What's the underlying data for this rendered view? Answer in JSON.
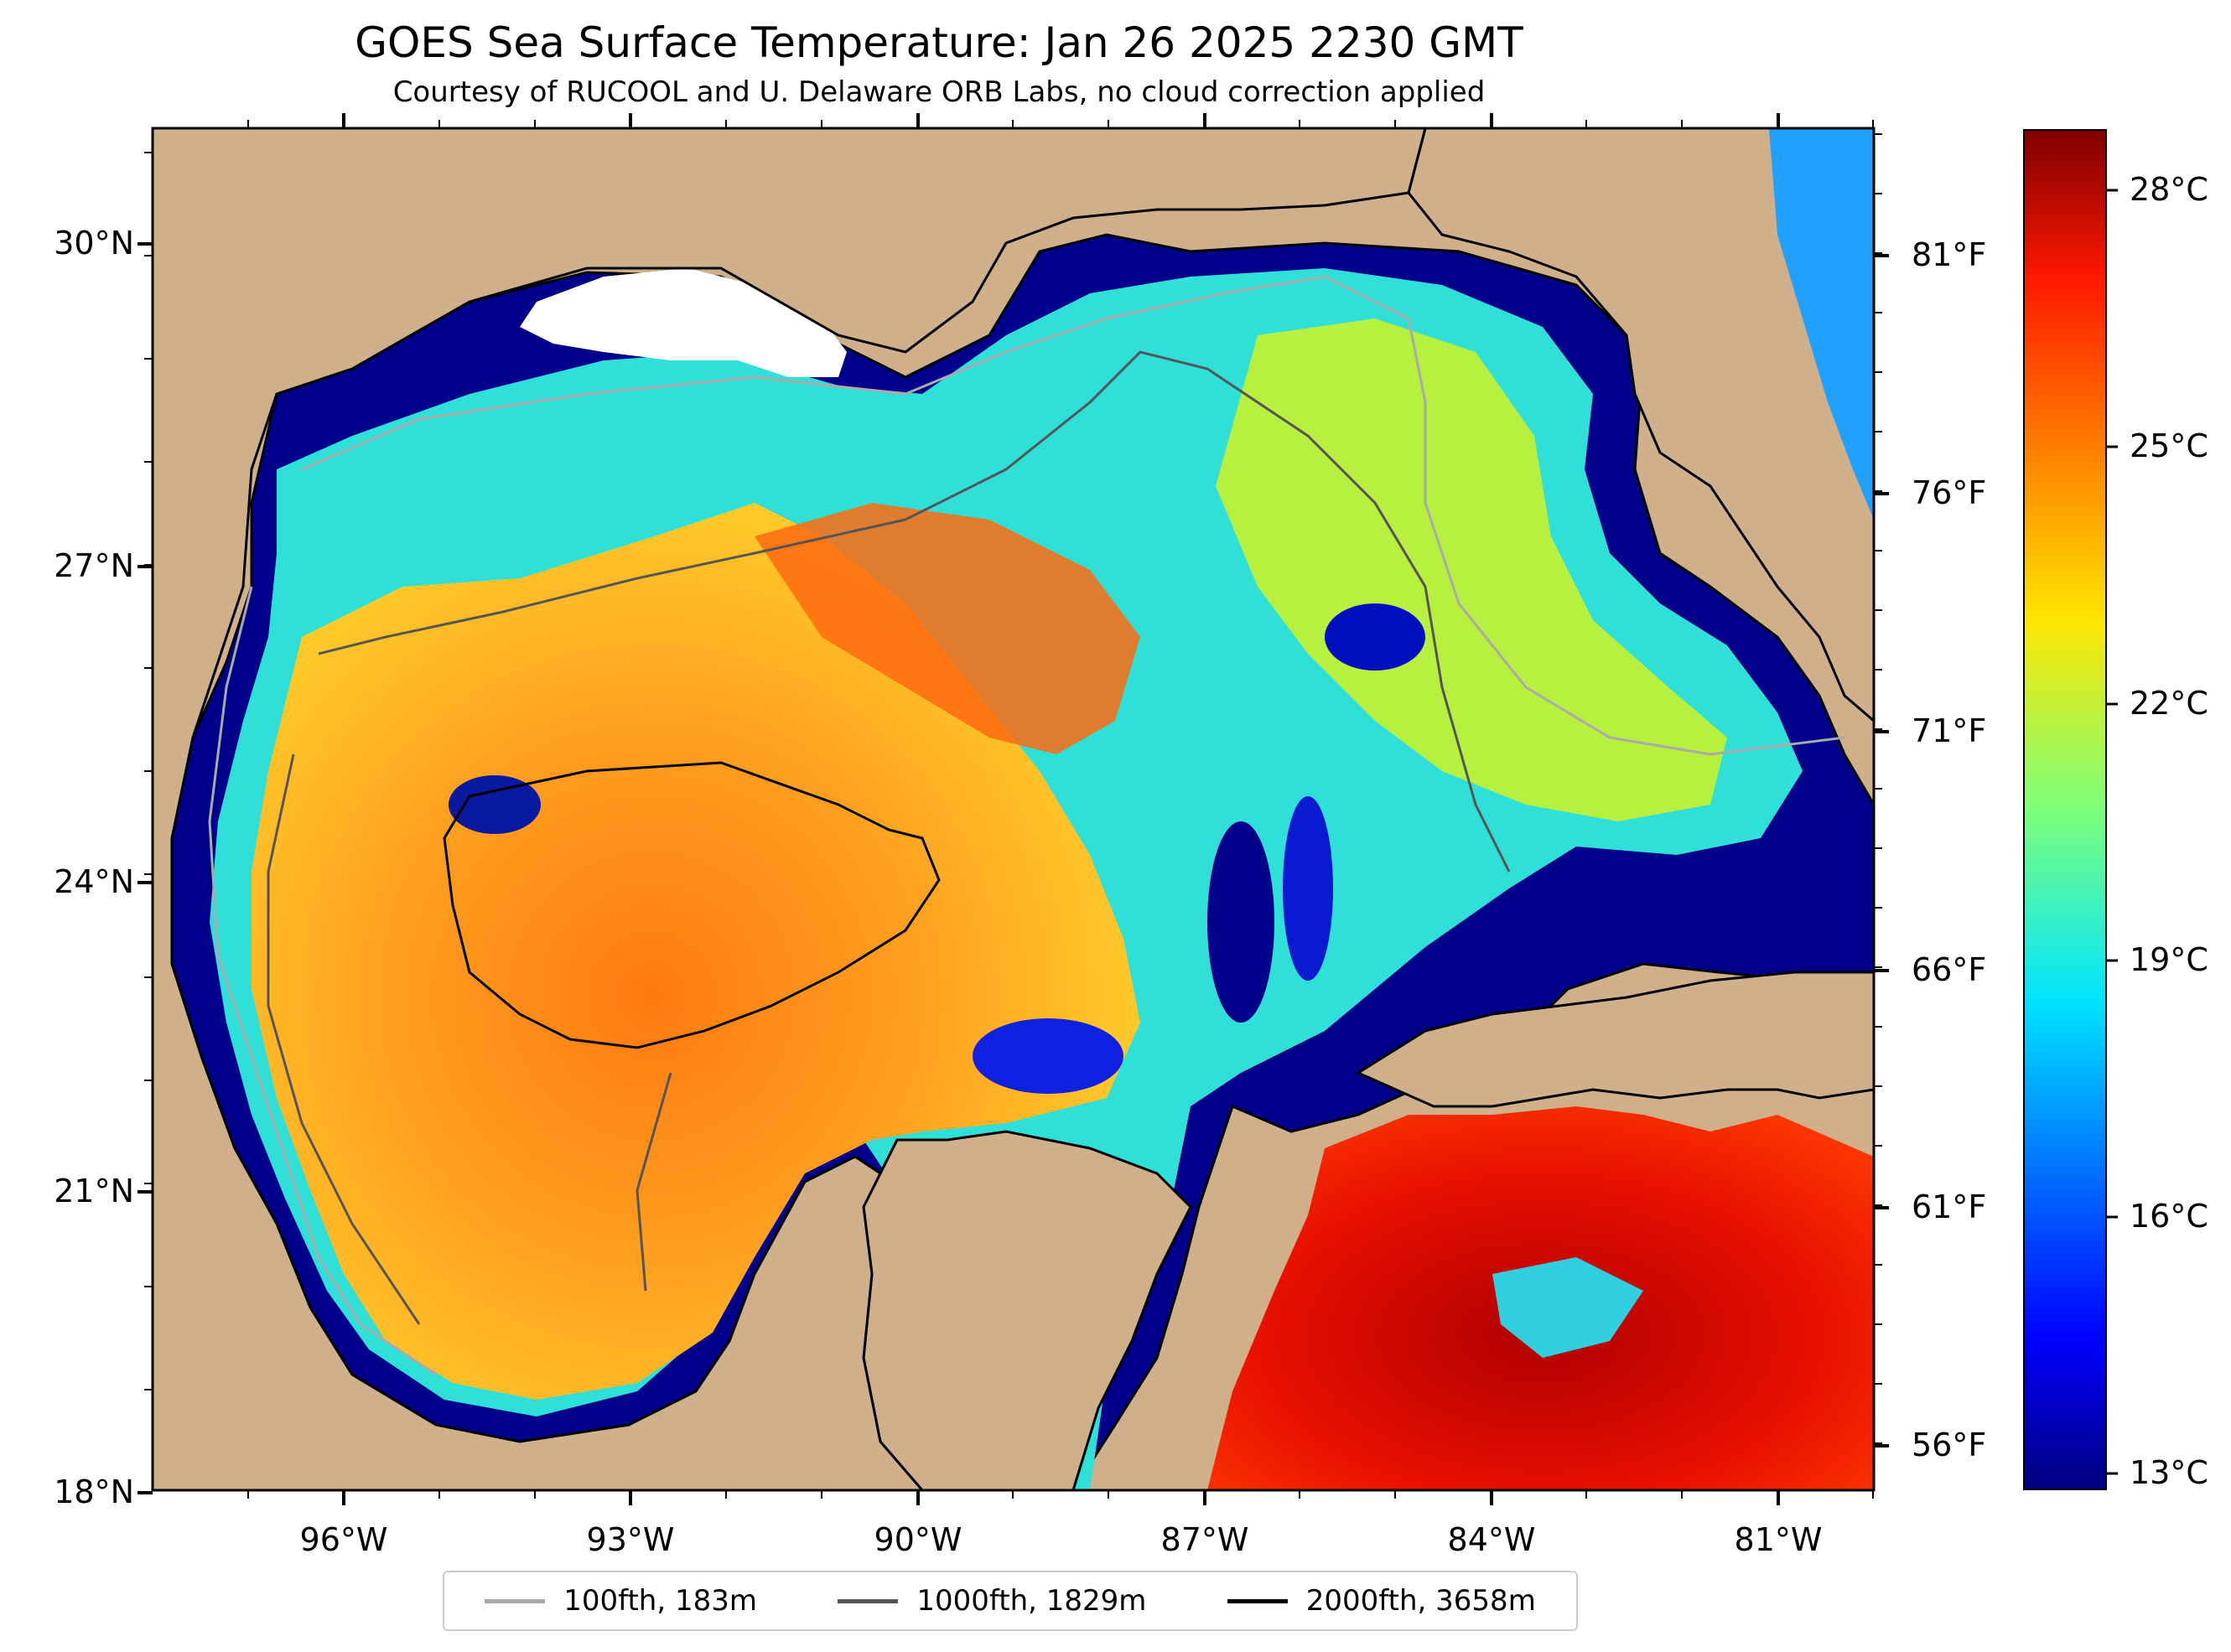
{
  "title": "GOES Sea Surface Temperature: Jan 26 2025 2230 GMT",
  "subtitle": "Courtesy of RUCOOL and U. Delaware ORB Labs, no cloud correction applied",
  "map": {
    "lat_labels": [
      "30°N",
      "27°N",
      "24°N",
      "21°N",
      "18°N"
    ],
    "lon_labels": [
      "96°W",
      "93°W",
      "90°W",
      "87°W",
      "84°W",
      "81°W"
    ],
    "fahrenheit_labels": [
      "81°F",
      "76°F",
      "71°F",
      "66°F",
      "61°F",
      "56°F"
    ],
    "colors": {
      "land": "#cfb08a",
      "water_cold": "#00008b",
      "coast": "#000000"
    }
  },
  "colorbar": {
    "labels": [
      "28°C",
      "25°C",
      "22°C",
      "19°C",
      "16°C",
      "13°C"
    ]
  },
  "legend": [
    {
      "label": "100fth, 183m",
      "color": "#aaaaaa"
    },
    {
      "label": "1000fth, 1829m",
      "color": "#555555"
    },
    {
      "label": "2000fth, 3658m",
      "color": "#000000"
    }
  ]
}
